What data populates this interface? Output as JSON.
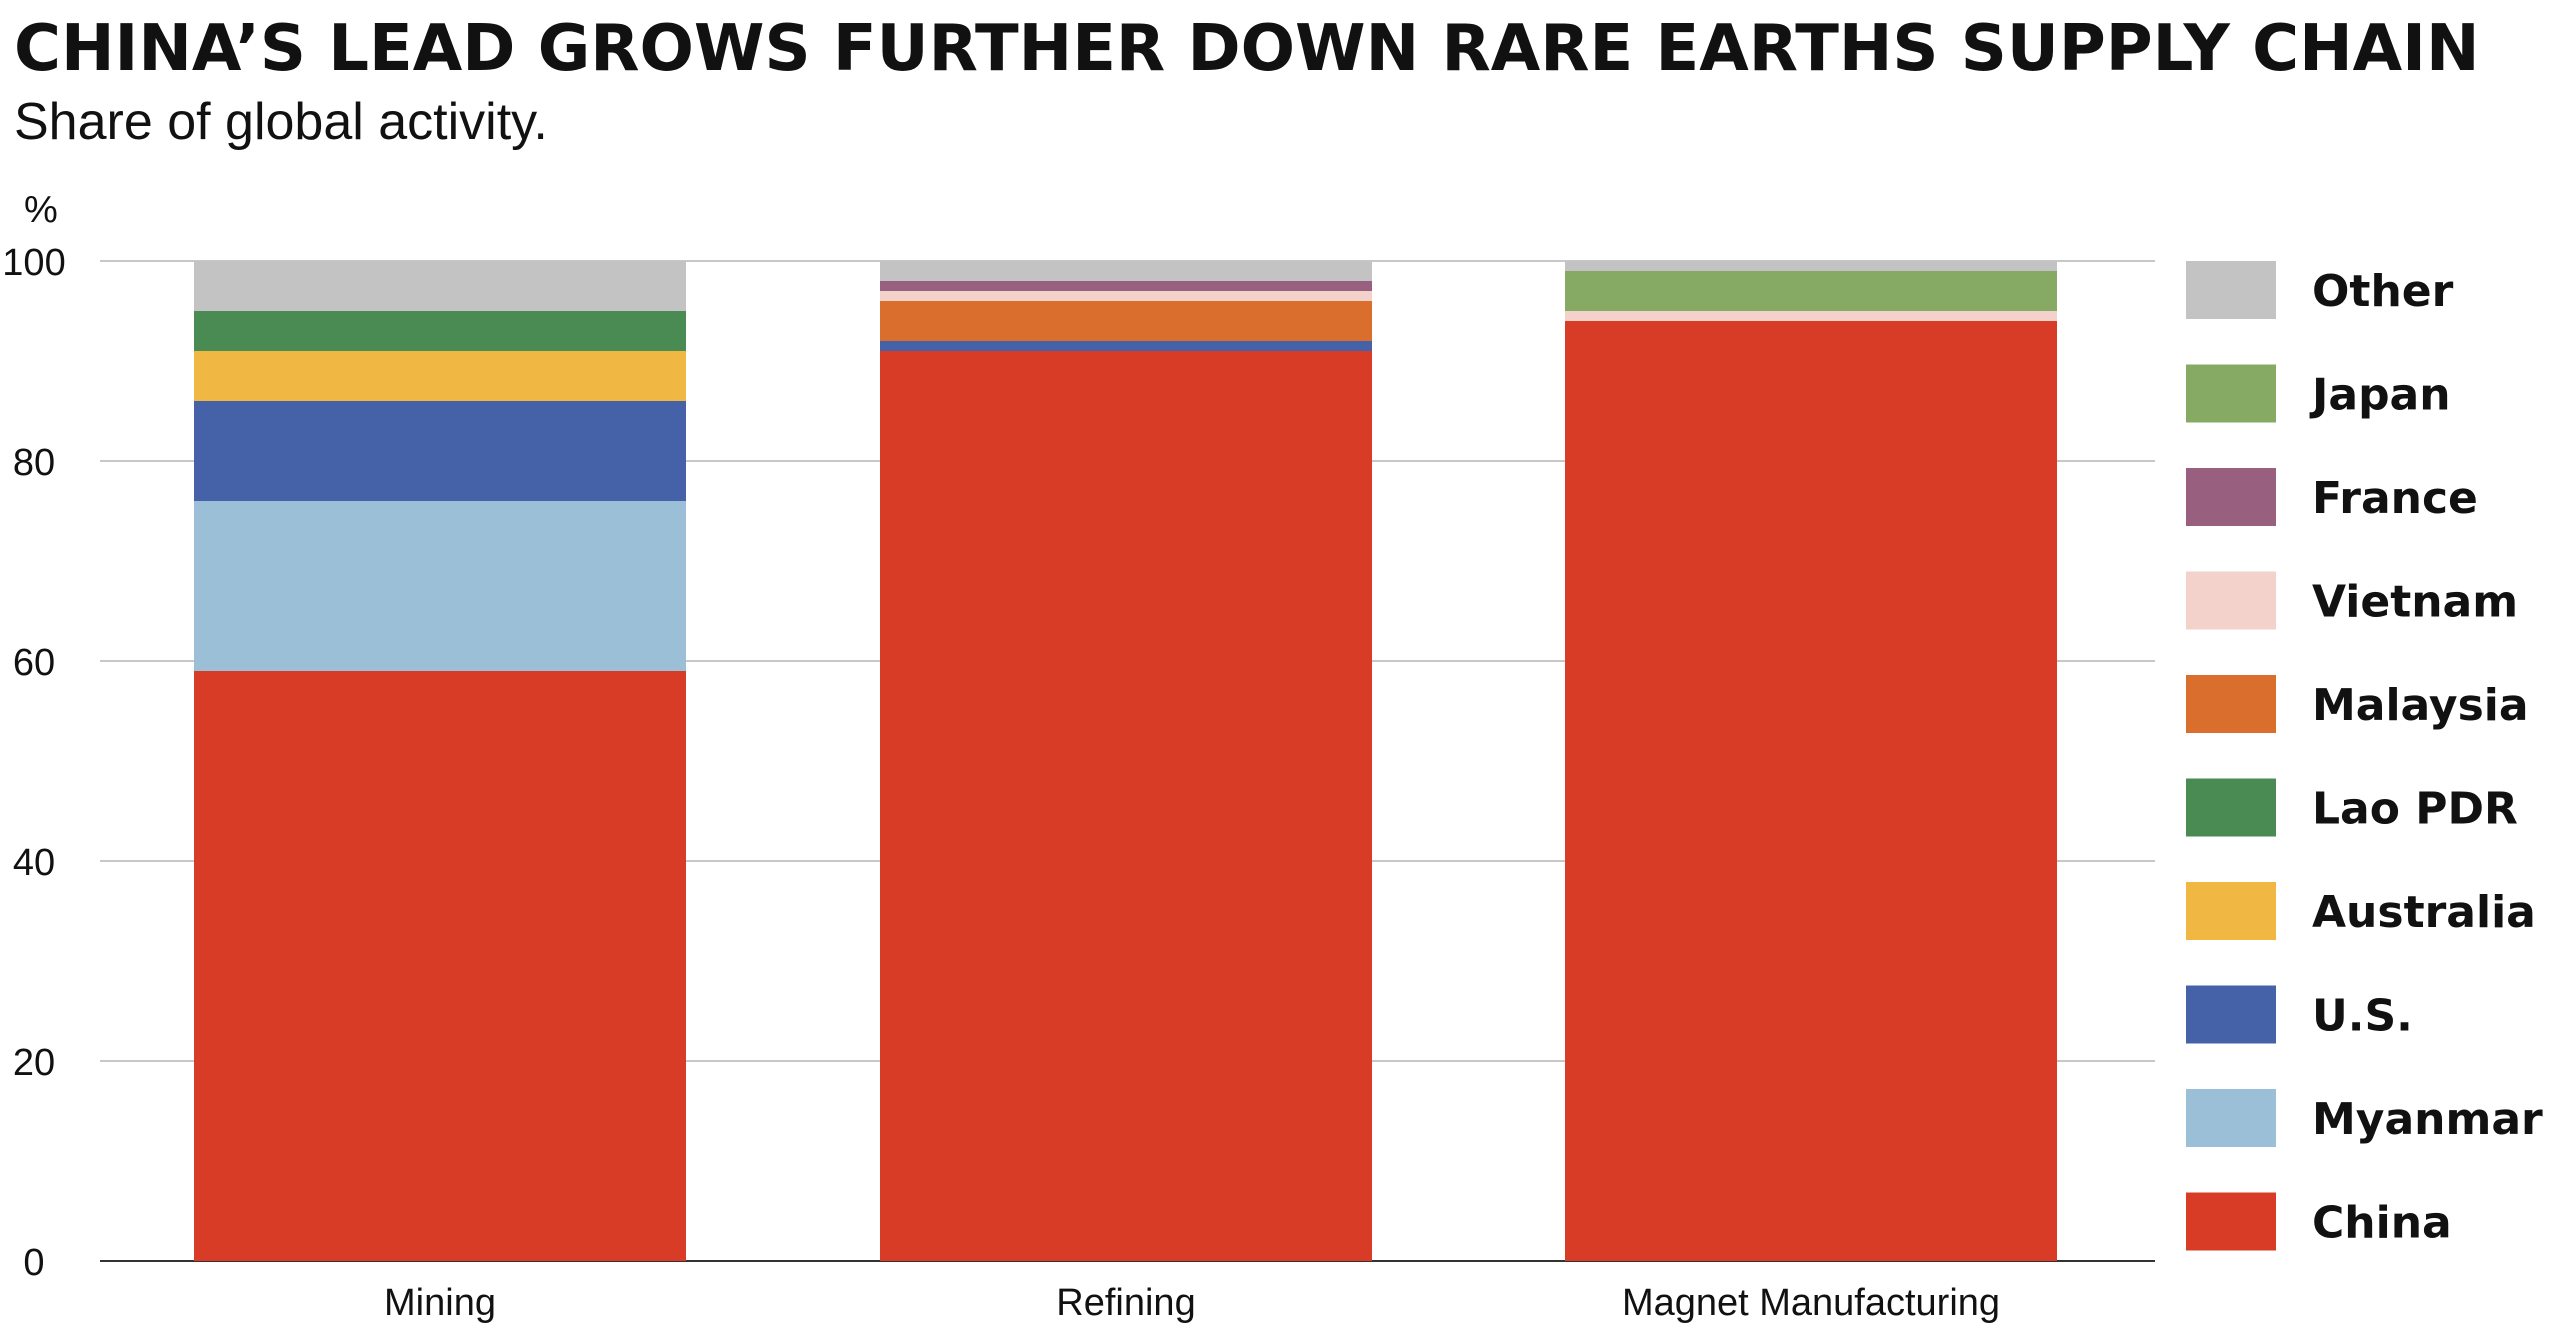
{
  "title": "CHINA’S LEAD GROWS FURTHER DOWN RARE EARTHS SUPPLY CHAIN",
  "subtitle": "Share of global activity.",
  "chart_data": {
    "type": "bar",
    "stacked": true,
    "categories": [
      "Mining",
      "Refining",
      "Magnet Manufacturing"
    ],
    "ylabel": "%",
    "ylim": [
      0,
      100
    ],
    "yticks": [
      0,
      20,
      40,
      60,
      80,
      100
    ],
    "grid": true,
    "legend_position": "right",
    "series": [
      {
        "name": "China",
        "color": "#d93c26",
        "values": [
          59,
          91,
          94
        ]
      },
      {
        "name": "Myanmar",
        "color": "#9bbfd6",
        "values": [
          17,
          0,
          0
        ]
      },
      {
        "name": "U.S.",
        "color": "#4562a8",
        "values": [
          10,
          1,
          0
        ]
      },
      {
        "name": "Australia",
        "color": "#f0b743",
        "values": [
          5,
          0,
          0
        ]
      },
      {
        "name": "Lao PDR",
        "color": "#4a8b54",
        "values": [
          4,
          0,
          0
        ]
      },
      {
        "name": "Malaysia",
        "color": "#da6e2c",
        "values": [
          0,
          4,
          0
        ]
      },
      {
        "name": "Vietnam",
        "color": "#f3d2cc",
        "values": [
          0,
          1,
          1
        ]
      },
      {
        "name": "France",
        "color": "#98607e",
        "values": [
          0,
          1,
          0
        ]
      },
      {
        "name": "Japan",
        "color": "#86aa64",
        "values": [
          0,
          0,
          4
        ]
      },
      {
        "name": "Other",
        "color": "#c2c3c2",
        "values": [
          5,
          2,
          1
        ]
      }
    ]
  }
}
